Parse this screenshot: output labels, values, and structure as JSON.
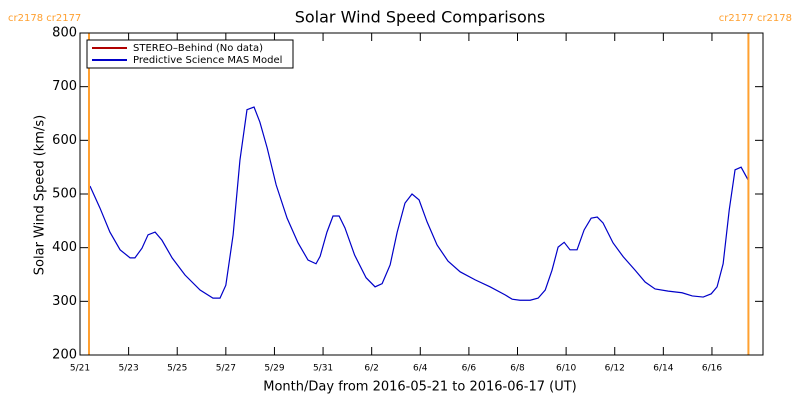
{
  "chart_data": {
    "type": "line",
    "title": "Solar Wind Speed Comparisons",
    "xlabel": "Month/Day from 2016-05-21 to 2016-06-17 (UT)",
    "ylabel": "Solar Wind Speed (km/s)",
    "x": [
      0.41,
      0.82,
      1.23,
      1.65,
      2.06,
      2.26,
      2.55,
      2.8,
      3.09,
      3.37,
      3.79,
      4.32,
      4.94,
      5.47,
      5.76,
      6.0,
      6.3,
      6.58,
      6.87,
      7.16,
      7.4,
      7.7,
      8.07,
      8.52,
      8.97,
      9.38,
      9.71,
      9.88,
      10.16,
      10.41,
      10.66,
      10.9,
      11.3,
      11.77,
      12.14,
      12.43,
      12.76,
      13.05,
      13.37,
      13.66,
      13.95,
      14.28,
      14.69,
      15.14,
      15.64,
      16.26,
      16.87,
      17.49,
      17.78,
      18.1,
      18.52,
      18.85,
      19.14,
      19.42,
      19.67,
      19.92,
      20.16,
      20.45,
      20.74,
      21.03,
      21.28,
      21.52,
      21.93,
      22.35,
      22.84,
      23.25,
      23.66,
      24.2,
      24.77,
      25.19,
      25.64,
      25.97,
      26.21,
      26.46,
      26.71,
      26.95,
      27.2,
      27.49
    ],
    "series": [
      {
        "name": "STEREO–Behind (No data)",
        "color": "#b00000",
        "values": [
          null,
          null,
          null,
          null,
          null,
          null,
          null,
          null,
          null,
          null,
          null,
          null,
          null,
          null,
          null,
          null,
          null,
          null,
          null,
          null,
          null,
          null,
          null,
          null,
          null,
          null,
          null,
          null,
          null,
          null,
          null,
          null,
          null,
          null,
          null,
          null,
          null,
          null,
          null,
          null,
          null,
          null,
          null,
          null,
          null,
          null,
          null,
          null,
          null,
          null,
          null,
          null,
          null,
          null,
          null,
          null,
          null,
          null,
          null,
          null,
          null,
          null,
          null,
          null,
          null,
          null,
          null,
          null,
          null,
          null,
          null,
          null,
          null,
          null,
          null,
          null,
          null,
          null
        ]
      },
      {
        "name": "Predictive Science MAS Model",
        "color": "#0000c8",
        "values": [
          515,
          474,
          429,
          396,
          381,
          381,
          399,
          424,
          429,
          414,
          381,
          349,
          321,
          306,
          306,
          330,
          424,
          563,
          657,
          662,
          634,
          586,
          517,
          455,
          409,
          377,
          370,
          384,
          429,
          459,
          459,
          437,
          386,
          344,
          327,
          333,
          368,
          429,
          483,
          500,
          489,
          448,
          405,
          375,
          355,
          340,
          327,
          312,
          304,
          302,
          302,
          306,
          321,
          358,
          401,
          410,
          396,
          396,
          433,
          455,
          457,
          446,
          409,
          383,
          358,
          336,
          323,
          319,
          316,
          310,
          308,
          314,
          327,
          370,
          470,
          545,
          550,
          526
        ]
      }
    ],
    "xlim": [
      0,
      28.1
    ],
    "xticks": [
      {
        "value": 0,
        "label": "5/21"
      },
      {
        "value": 2,
        "label": "5/23"
      },
      {
        "value": 4,
        "label": "5/25"
      },
      {
        "value": 6,
        "label": "5/27"
      },
      {
        "value": 8,
        "label": "5/29"
      },
      {
        "value": 10,
        "label": "5/31"
      },
      {
        "value": 12,
        "label": "6/2"
      },
      {
        "value": 14,
        "label": "6/4"
      },
      {
        "value": 16,
        "label": "6/6"
      },
      {
        "value": 18,
        "label": "6/8"
      },
      {
        "value": 20,
        "label": "6/10"
      },
      {
        "value": 22,
        "label": "6/12"
      },
      {
        "value": 24,
        "label": "6/14"
      },
      {
        "value": 26,
        "label": "6/16"
      }
    ],
    "ylim": [
      200,
      800
    ],
    "yticks": [
      200,
      300,
      400,
      500,
      600,
      700,
      800
    ],
    "vlines": [
      {
        "x": 0.37,
        "label": "cr2178 cr2177",
        "color": "#ffa030"
      },
      {
        "x": 27.5,
        "label": "cr2177 cr2178",
        "color": "#ffa030"
      }
    ],
    "legend": "upper left"
  }
}
